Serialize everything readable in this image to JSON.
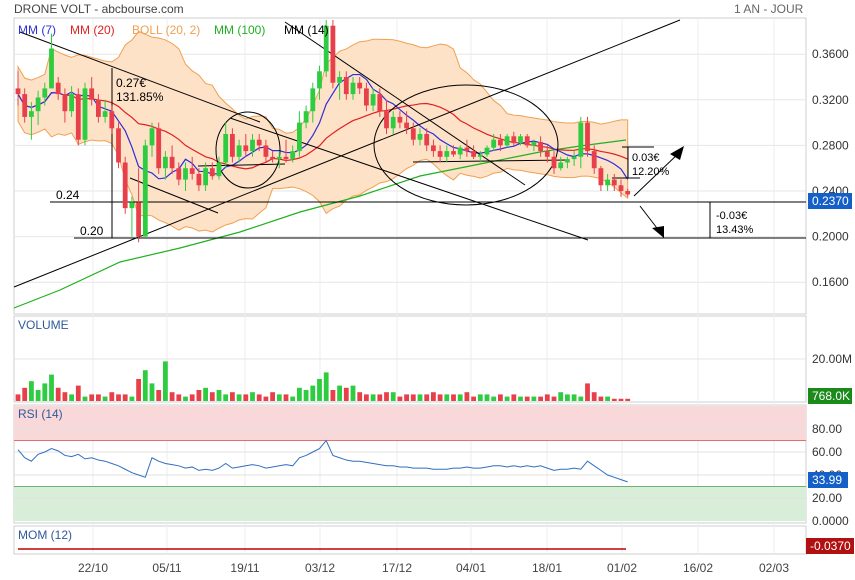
{
  "header": {
    "title": "DRONE VOLT - abcbourse.com",
    "period": "1 AN - JOUR"
  },
  "colors": {
    "up": "#2ecc40",
    "down": "#e8404a",
    "mm7": "#2e2ed8",
    "mm20": "#e02020",
    "boll": "#f0a050",
    "mm100": "#20b020",
    "mm14": "#000000",
    "rsi": "#2f6fc0",
    "mom": "#c00000",
    "price_badge": "#1560c8",
    "volume_badge": "#1a8a1a",
    "mom_badge": "#b01010"
  },
  "legend": [
    "MM (7)",
    "MM (20)",
    "BOLL (20, 2)",
    "MM (100)",
    "MM (14)"
  ],
  "x_labels": [
    "22/10",
    "05/11",
    "19/11",
    "03/12",
    "17/12",
    "04/01",
    "18/01",
    "01/02",
    "16/02",
    "02/03"
  ],
  "chart_data": [
    {
      "type": "line",
      "panel": "price",
      "y_ticks": [
        "0.3600",
        "0.3200",
        "0.2800",
        "0.2400",
        "0.2000",
        "0.1600"
      ],
      "ylim": [
        0.14,
        0.39
      ],
      "price_badge": "0.2370",
      "annotations": {
        "label_027": "0.27€",
        "label_13185": "131.85%",
        "label_024": "0.24",
        "label_020": "0.20",
        "up_value": "0.03€",
        "up_pct": "12.20%",
        "down_value": "-0.03€",
        "down_pct": "13.43%"
      },
      "candles_ohlc": [
        [
          0.33,
          0.345,
          0.315,
          0.325
        ],
        [
          0.325,
          0.33,
          0.3,
          0.305
        ],
        [
          0.305,
          0.318,
          0.285,
          0.31
        ],
        [
          0.31,
          0.328,
          0.298,
          0.322
        ],
        [
          0.322,
          0.335,
          0.315,
          0.33
        ],
        [
          0.33,
          0.378,
          0.33,
          0.365
        ],
        [
          0.335,
          0.34,
          0.32,
          0.325
        ],
        [
          0.325,
          0.33,
          0.3,
          0.31
        ],
        [
          0.31,
          0.332,
          0.305,
          0.325
        ],
        [
          0.325,
          0.33,
          0.28,
          0.285
        ],
        [
          0.285,
          0.335,
          0.28,
          0.33
        ],
        [
          0.33,
          0.34,
          0.315,
          0.32
        ],
        [
          0.32,
          0.325,
          0.3,
          0.305
        ],
        [
          0.305,
          0.32,
          0.3,
          0.31
        ],
        [
          0.31,
          0.315,
          0.29,
          0.295
        ],
        [
          0.295,
          0.3,
          0.26,
          0.265
        ],
        [
          0.265,
          0.27,
          0.22,
          0.225
        ],
        [
          0.225,
          0.235,
          0.2,
          0.23
        ],
        [
          0.23,
          0.26,
          0.195,
          0.2
        ],
        [
          0.2,
          0.285,
          0.2,
          0.28
        ],
        [
          0.28,
          0.3,
          0.27,
          0.295
        ],
        [
          0.295,
          0.3,
          0.255,
          0.26
        ],
        [
          0.26,
          0.275,
          0.25,
          0.27
        ],
        [
          0.27,
          0.28,
          0.255,
          0.26
        ],
        [
          0.26,
          0.265,
          0.245,
          0.25
        ],
        [
          0.25,
          0.265,
          0.24,
          0.26
        ],
        [
          0.26,
          0.27,
          0.25,
          0.255
        ],
        [
          0.255,
          0.26,
          0.24,
          0.245
        ],
        [
          0.245,
          0.265,
          0.24,
          0.26
        ],
        [
          0.26,
          0.265,
          0.25,
          0.253
        ],
        [
          0.253,
          0.27,
          0.25,
          0.265
        ],
        [
          0.265,
          0.3,
          0.26,
          0.29
        ],
        [
          0.29,
          0.295,
          0.265,
          0.27
        ],
        [
          0.27,
          0.285,
          0.265,
          0.28
        ],
        [
          0.28,
          0.29,
          0.27,
          0.275
        ],
        [
          0.275,
          0.29,
          0.27,
          0.285
        ],
        [
          0.285,
          0.29,
          0.275,
          0.28
        ],
        [
          0.28,
          0.285,
          0.265,
          0.27
        ],
        [
          0.27,
          0.275,
          0.265,
          0.268
        ],
        [
          0.268,
          0.275,
          0.26,
          0.27
        ],
        [
          0.27,
          0.285,
          0.265,
          0.268
        ],
        [
          0.268,
          0.28,
          0.265,
          0.275
        ],
        [
          0.275,
          0.31,
          0.27,
          0.3
        ],
        [
          0.3,
          0.315,
          0.295,
          0.31
        ],
        [
          0.31,
          0.335,
          0.3,
          0.33
        ],
        [
          0.33,
          0.35,
          0.32,
          0.345
        ],
        [
          0.345,
          0.39,
          0.34,
          0.385
        ],
        [
          0.385,
          0.39,
          0.33,
          0.335
        ],
        [
          0.335,
          0.345,
          0.32,
          0.34
        ],
        [
          0.34,
          0.345,
          0.32,
          0.325
        ],
        [
          0.325,
          0.34,
          0.32,
          0.335
        ],
        [
          0.335,
          0.34,
          0.325,
          0.33
        ],
        [
          0.33,
          0.335,
          0.31,
          0.315
        ],
        [
          0.315,
          0.33,
          0.31,
          0.325
        ],
        [
          0.325,
          0.33,
          0.305,
          0.31
        ],
        [
          0.31,
          0.32,
          0.29,
          0.295
        ],
        [
          0.295,
          0.31,
          0.29,
          0.305
        ],
        [
          0.305,
          0.31,
          0.295,
          0.3
        ],
        [
          0.3,
          0.31,
          0.29,
          0.295
        ],
        [
          0.295,
          0.3,
          0.28,
          0.285
        ],
        [
          0.285,
          0.295,
          0.28,
          0.29
        ],
        [
          0.29,
          0.295,
          0.275,
          0.28
        ],
        [
          0.28,
          0.285,
          0.27,
          0.275
        ],
        [
          0.275,
          0.28,
          0.265,
          0.27
        ],
        [
          0.27,
          0.28,
          0.265,
          0.275
        ],
        [
          0.275,
          0.28,
          0.27,
          0.272
        ],
        [
          0.272,
          0.28,
          0.268,
          0.278
        ],
        [
          0.278,
          0.285,
          0.27,
          0.275
        ],
        [
          0.275,
          0.28,
          0.268,
          0.27
        ],
        [
          0.27,
          0.275,
          0.265,
          0.272
        ],
        [
          0.272,
          0.28,
          0.27,
          0.278
        ],
        [
          0.278,
          0.29,
          0.275,
          0.285
        ],
        [
          0.285,
          0.29,
          0.275,
          0.28
        ],
        [
          0.28,
          0.29,
          0.278,
          0.288
        ],
        [
          0.288,
          0.292,
          0.28,
          0.282
        ],
        [
          0.282,
          0.29,
          0.28,
          0.288
        ],
        [
          0.288,
          0.29,
          0.278,
          0.28
        ],
        [
          0.28,
          0.285,
          0.275,
          0.283
        ],
        [
          0.283,
          0.288,
          0.27,
          0.275
        ],
        [
          0.275,
          0.28,
          0.265,
          0.27
        ],
        [
          0.27,
          0.275,
          0.255,
          0.26
        ],
        [
          0.26,
          0.27,
          0.258,
          0.265
        ],
        [
          0.265,
          0.27,
          0.26,
          0.268
        ],
        [
          0.268,
          0.275,
          0.262,
          0.27
        ],
        [
          0.27,
          0.305,
          0.26,
          0.3
        ],
        [
          0.3,
          0.305,
          0.27,
          0.275
        ],
        [
          0.275,
          0.28,
          0.255,
          0.26
        ],
        [
          0.26,
          0.262,
          0.24,
          0.245
        ],
        [
          0.245,
          0.255,
          0.24,
          0.25
        ],
        [
          0.25,
          0.255,
          0.24,
          0.245
        ],
        [
          0.245,
          0.25,
          0.235,
          0.24
        ],
        [
          0.24,
          0.242,
          0.235,
          0.237
        ]
      ],
      "volume": {
        "ytick": "20.00M",
        "badge": "768.0K",
        "values": [
          3,
          6,
          9,
          5,
          8,
          12,
          6,
          4,
          3,
          7,
          2,
          3,
          3,
          2,
          4,
          3,
          3,
          2,
          10,
          14,
          8,
          5,
          18,
          4,
          3,
          2,
          3,
          5,
          6,
          4,
          5,
          3,
          4,
          3,
          3,
          4,
          3,
          2,
          4,
          3,
          3,
          2,
          6,
          5,
          7,
          10,
          13,
          5,
          7,
          6,
          7,
          4,
          3,
          3,
          3,
          4,
          4,
          2,
          3,
          3,
          3,
          3,
          4,
          3,
          3,
          3,
          3,
          4,
          2,
          3,
          3,
          2,
          3,
          2,
          3,
          2,
          2,
          2,
          2,
          3,
          2,
          4,
          3,
          3,
          2,
          8,
          4,
          2,
          2,
          1,
          1,
          1
        ]
      },
      "rsi": {
        "label": "RSI (14)",
        "y_ticks": [
          "80.00",
          "60.00",
          "40.00",
          "20.00",
          "0.0000"
        ],
        "ylim": [
          0,
          100
        ],
        "badge": "33.99",
        "values": [
          62,
          55,
          52,
          58,
          60,
          63,
          61,
          57,
          56,
          58,
          54,
          55,
          53,
          52,
          50,
          48,
          45,
          42,
          40,
          38,
          55,
          52,
          50,
          49,
          48,
          46,
          47,
          44,
          45,
          44,
          46,
          50,
          46,
          47,
          48,
          49,
          48,
          46,
          47,
          48,
          49,
          48,
          55,
          57,
          60,
          63,
          70,
          57,
          55,
          53,
          52,
          52,
          51,
          50,
          49,
          48,
          48,
          47,
          47,
          46,
          46,
          46,
          45,
          45,
          45,
          46,
          46,
          47,
          46,
          46,
          47,
          48,
          48,
          47,
          48,
          47,
          48,
          47,
          48,
          46,
          44,
          45,
          45,
          46,
          45,
          52,
          48,
          44,
          40,
          38,
          36,
          34
        ]
      },
      "mom": {
        "label": "MOM (12)",
        "badge": "-0.0370"
      }
    }
  ]
}
